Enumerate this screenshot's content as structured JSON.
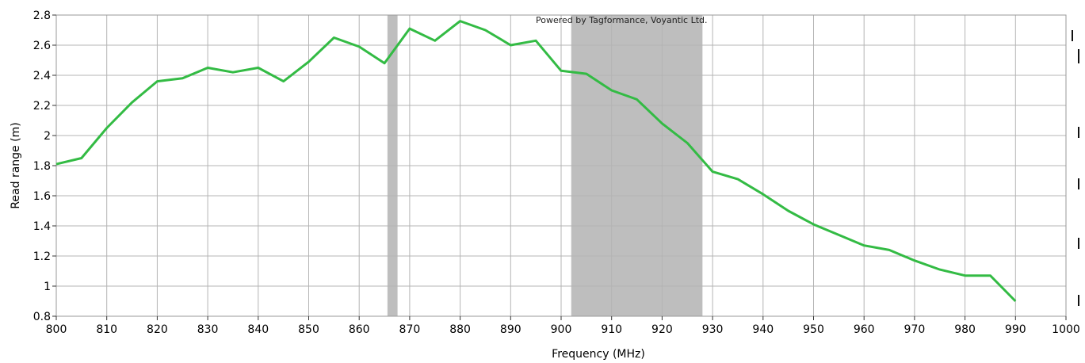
{
  "chart_data": {
    "type": "line",
    "watermark": "Powered by Tagformance, Voyantic Ltd.",
    "xlabel": "Frequency (MHz)",
    "ylabel": "Read range (m)",
    "xlim": [
      800,
      1000
    ],
    "ylim": [
      0.8,
      2.8
    ],
    "x_ticks": [
      800,
      810,
      820,
      830,
      840,
      850,
      860,
      870,
      880,
      890,
      900,
      910,
      920,
      930,
      940,
      950,
      960,
      970,
      980,
      990,
      1000
    ],
    "x_tick_labels": [
      "800",
      "810",
      "820",
      "830",
      "840",
      "850",
      "860",
      "870",
      "880",
      "890",
      "900",
      "910",
      "920",
      "930",
      "940",
      "950",
      "960",
      "970",
      "980",
      "990",
      "1000"
    ],
    "y_ticks": [
      0.8,
      1,
      1.2,
      1.4,
      1.6,
      1.8,
      2,
      2.2,
      2.4,
      2.6,
      2.8
    ],
    "y_tick_labels": [
      "0.8",
      "1",
      "1.2",
      "1.4",
      "1.6",
      "1.8",
      "2",
      "2.2",
      "2.4",
      "2.6",
      "2.8"
    ],
    "grid": true,
    "shaded_bands": [
      {
        "x_start": 865.6,
        "x_end": 867.6
      },
      {
        "x_start": 902,
        "x_end": 928
      }
    ],
    "series": [
      {
        "color": "#33bb44",
        "x": [
          800,
          805,
          810,
          815,
          820,
          825,
          830,
          835,
          840,
          845,
          850,
          855,
          860,
          865,
          870,
          875,
          880,
          885,
          890,
          895,
          900,
          905,
          910,
          915,
          920,
          925,
          930,
          935,
          940,
          945,
          950,
          955,
          960,
          965,
          970,
          975,
          980,
          985,
          990
        ],
        "y": [
          1.81,
          1.85,
          2.05,
          2.22,
          2.36,
          2.38,
          2.45,
          2.42,
          2.45,
          2.36,
          2.49,
          2.65,
          2.59,
          2.48,
          2.71,
          2.63,
          2.76,
          2.7,
          2.6,
          2.63,
          2.43,
          2.41,
          2.3,
          2.24,
          2.08,
          1.95,
          1.76,
          1.71,
          1.61,
          1.5,
          1.41,
          1.34,
          1.27,
          1.24,
          1.17,
          1.11,
          1.07,
          1.07,
          0.9
        ]
      }
    ]
  },
  "colors": {
    "band": "#bebebe",
    "grid": "#b4b4b4",
    "frame": "#9a9a9a",
    "line": "#33bb44"
  }
}
